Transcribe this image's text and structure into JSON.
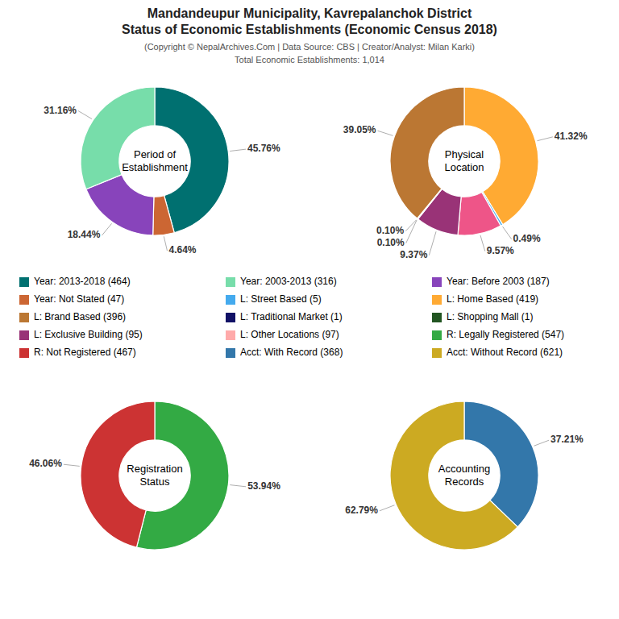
{
  "title": [
    "Mandandeupur Municipality, Kavrepalanchok District",
    "Status of Economic Establishments (Economic Census 2018)"
  ],
  "subtitle": [
    "(Copyright © NepalArchives.Com | Data Source: CBS | Creator/Analyst: Milan Karki)",
    "Total Economic Establishments: 1,014"
  ],
  "chart_data": [
    {
      "type": "pie",
      "title": "Period of\nEstablishment",
      "values": [
        45.76,
        4.64,
        18.44,
        31.16
      ],
      "colors": [
        "#007070",
        "#CC6633",
        "#8844BB",
        "#77DDAA"
      ],
      "data_labels": true,
      "value_labels": [
        "45.76%",
        "4.64%",
        "18.44%",
        "31.16%"
      ]
    },
    {
      "type": "pie",
      "title": "Physical\nLocation",
      "values": [
        41.32,
        0.49,
        9.57,
        9.37,
        0.1,
        0.1,
        39.05
      ],
      "colors": [
        "#FFAA33",
        "#44AAEE",
        "#EE5588",
        "#993377",
        "#336688",
        "#226644",
        "#BB7733"
      ],
      "data_labels": true,
      "value_labels": [
        "41.32%",
        "0.49%",
        "9.57%",
        "9.37%",
        "0.10%",
        "0.10%",
        "39.05%"
      ]
    },
    {
      "type": "pie",
      "title": "Registration\nStatus",
      "values": [
        53.94,
        46.06
      ],
      "colors": [
        "#33AA44",
        "#CC3333"
      ],
      "data_labels": true,
      "value_labels": [
        "53.94%",
        "46.06%"
      ]
    },
    {
      "type": "pie",
      "title": "Accounting\nRecords",
      "values": [
        37.21,
        62.79
      ],
      "colors": [
        "#3377AA",
        "#CCAA22"
      ],
      "data_labels": true,
      "value_labels": [
        "37.21%",
        "62.79%"
      ]
    }
  ],
  "legend_items": [
    {
      "label": "Year: 2013-2018 (464)",
      "color": "#007070"
    },
    {
      "label": "Year: 2003-2013 (316)",
      "color": "#77DDAA"
    },
    {
      "label": "Year: Before 2003 (187)",
      "color": "#8844BB"
    },
    {
      "label": "Year: Not Stated (47)",
      "color": "#CC6633"
    },
    {
      "label": "L: Street Based (5)",
      "color": "#44AAEE"
    },
    {
      "label": "L: Home Based (419)",
      "color": "#FFAA33"
    },
    {
      "label": "L: Brand Based (396)",
      "color": "#BB7733"
    },
    {
      "label": "L: Traditional Market (1)",
      "color": "#111166"
    },
    {
      "label": "L: Shopping Mall (1)",
      "color": "#225522"
    },
    {
      "label": "L: Exclusive Building (95)",
      "color": "#993377"
    },
    {
      "label": "L: Other Locations (97)",
      "color": "#FFAAAA"
    },
    {
      "label": "R: Legally Registered (547)",
      "color": "#33AA44"
    },
    {
      "label": "R: Not Registered (467)",
      "color": "#CC3333"
    },
    {
      "label": "Acct: With Record (368)",
      "color": "#3377AA"
    },
    {
      "label": "Acct: Without Record (621)",
      "color": "#CCAA22"
    }
  ]
}
